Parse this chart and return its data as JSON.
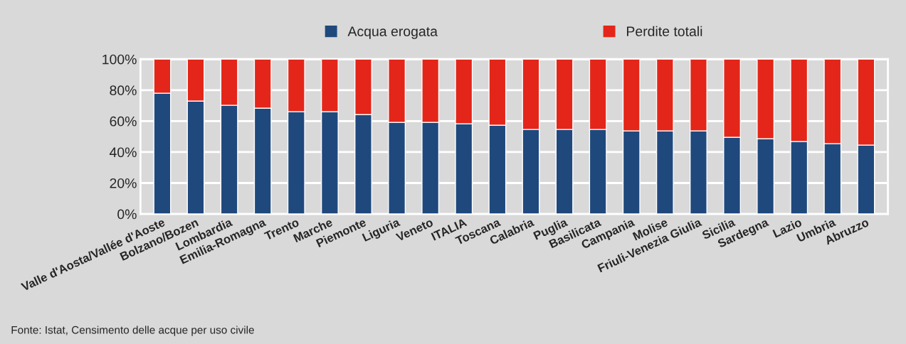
{
  "chart_data": {
    "type": "bar",
    "stacked": true,
    "categories": [
      "Valle d'Aosta/Vallée d'Aoste",
      "Bolzano/Bozen",
      "Lombardia",
      "Emilia-Romagna",
      "Trento",
      "Marche",
      "Piemonte",
      "Liguria",
      "Veneto",
      "ITALIA",
      "Toscana",
      "Calabria",
      "Puglia",
      "Basilicata",
      "Campania",
      "Molise",
      "Friuli-Venezia Giulia",
      "Sicilia",
      "Sardegna",
      "Lazio",
      "Umbria",
      "Abruzzo"
    ],
    "series": [
      {
        "name": "Acqua erogata",
        "color": "#1f497d",
        "values": [
          78.0,
          72.9,
          70.2,
          68.3,
          66.1,
          66.0,
          64.2,
          59.2,
          59.2,
          58.3,
          57.3,
          54.6,
          54.6,
          54.6,
          53.7,
          53.7,
          53.7,
          49.5,
          48.6,
          46.8,
          45.4,
          44.5
        ]
      },
      {
        "name": "Perdite totali",
        "color": "#e32619",
        "values": [
          22.0,
          27.1,
          29.8,
          31.7,
          33.9,
          34.0,
          35.8,
          40.8,
          40.8,
          41.7,
          42.7,
          45.4,
          45.4,
          45.4,
          46.3,
          46.3,
          46.3,
          50.5,
          51.4,
          53.2,
          54.6,
          55.5
        ]
      }
    ],
    "ylim": [
      0,
      100
    ],
    "yticks": [
      {
        "value": 0,
        "label": "0%"
      },
      {
        "value": 20,
        "label": "20%"
      },
      {
        "value": 40,
        "label": "40%"
      },
      {
        "value": 60,
        "label": "60%"
      },
      {
        "value": 80,
        "label": "80%"
      },
      {
        "value": 100,
        "label": "100%"
      }
    ],
    "grid": "y",
    "legend": "top",
    "annotations": [
      "Fonte: Istat, Censimento delle acque per uso civile"
    ]
  }
}
